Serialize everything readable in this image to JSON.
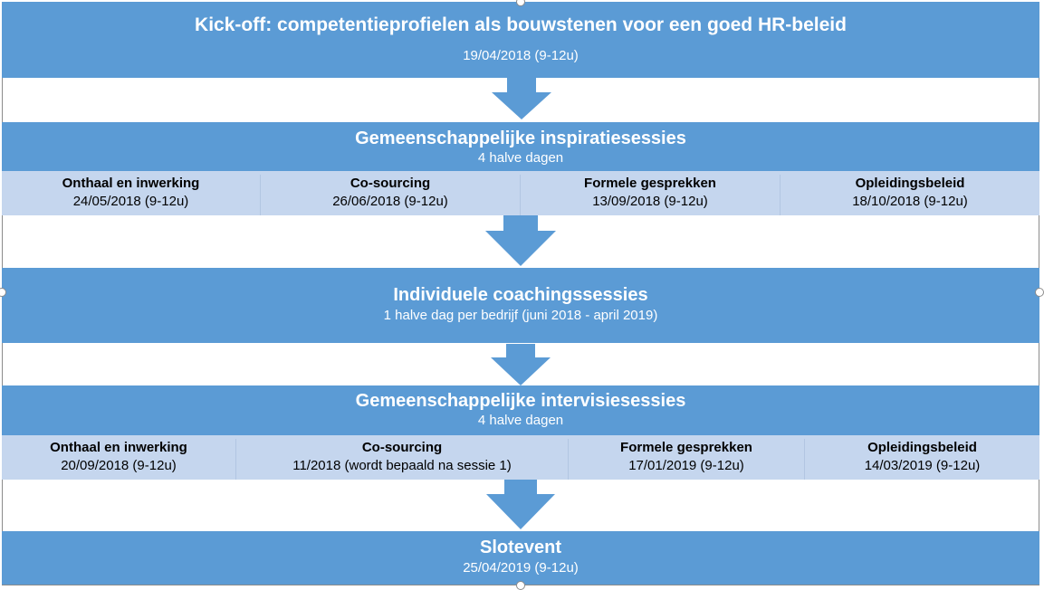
{
  "kickoff": {
    "title": "Kick-off: competentieprofielen als bouwstenen voor een goed HR-beleid",
    "date": "19/04/2018 (9-12u)"
  },
  "inspiratie": {
    "title": "Gemeenschappelijke inspiratiesessies",
    "subtitle": "4 halve dagen",
    "sessions": [
      {
        "label": "Onthaal en inwerking",
        "date": "24/05/2018 (9-12u)"
      },
      {
        "label": "Co-sourcing",
        "date": "26/06/2018 (9-12u)"
      },
      {
        "label": "Formele gesprekken",
        "date": "13/09/2018 (9-12u)"
      },
      {
        "label": "Opleidingsbeleid",
        "date": "18/10/2018 (9-12u)"
      }
    ]
  },
  "coaching": {
    "title": "Individuele coachingssessies",
    "subtitle": "1 halve dag per bedrijf (juni 2018 - april 2019)"
  },
  "intervisie": {
    "title": "Gemeenschappelijke intervisiesessies",
    "subtitle": "4 halve dagen",
    "sessions": [
      {
        "label": "Onthaal en inwerking",
        "date": "20/09/2018 (9-12u)"
      },
      {
        "label": "Co-sourcing",
        "date": "11/2018 (wordt bepaald na sessie 1)"
      },
      {
        "label": "Formele gesprekken",
        "date": "17/01/2019 (9-12u)"
      },
      {
        "label": "Opleidingsbeleid",
        "date": "14/03/2019 (9-12u)"
      }
    ]
  },
  "slotevent": {
    "title": "Slotevent",
    "date": "25/04/2019 (9-12u)"
  },
  "colors": {
    "band": "#5b9bd5",
    "row": "#c5d6ee",
    "arrow": "#5b9bd5"
  }
}
